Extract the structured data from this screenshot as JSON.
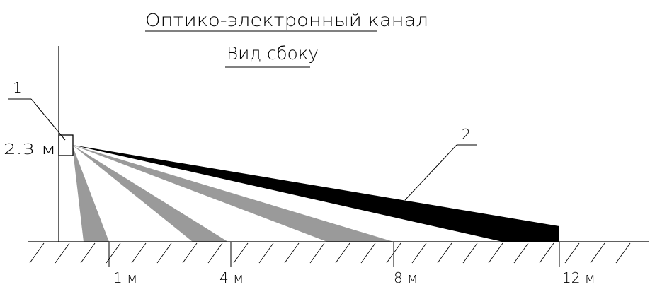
{
  "title": "Оптико-электронный канал",
  "subtitle": "Вид сбоку",
  "height_label": "2.3 м",
  "callouts": [
    {
      "id": "1",
      "label": "1"
    },
    {
      "id": "2",
      "label": "2"
    }
  ],
  "distance_labels": [
    "1 м",
    "4 м",
    "8 м",
    "12 м"
  ],
  "colors": {
    "ink": "#000000",
    "beam_gray": "#9a9a9a",
    "beam_black": "#000000",
    "background": "#ffffff"
  }
}
